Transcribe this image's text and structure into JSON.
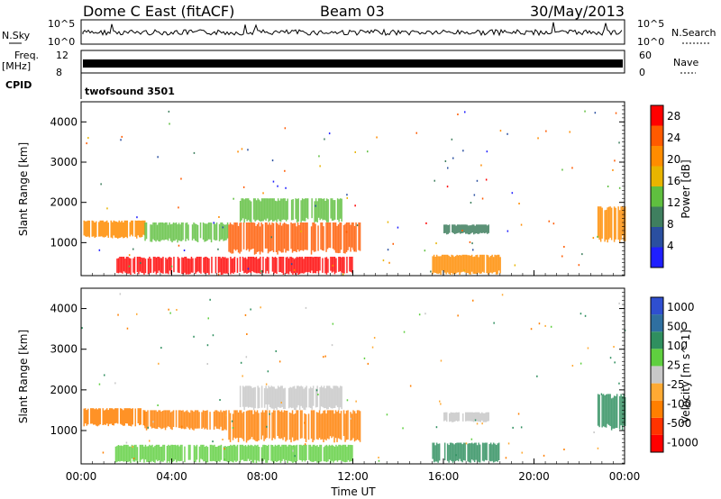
{
  "header": {
    "title": "Dome C East (fitACF)",
    "beam": "Beam 03",
    "date": "30/May/2013"
  },
  "status_panels": {
    "nsky_label": "N.Sky",
    "nsky_ticks": [
      "10^5",
      "10^0"
    ],
    "nsearch_label": "N.Search",
    "nsearch_ticks": [
      "10^5",
      "10^0"
    ],
    "freq_label": "Freq.",
    "freq_unit": "[MHz]",
    "freq_ticks": [
      "12",
      "8"
    ],
    "nave_label": "Nave",
    "nave_ticks": [
      "60",
      "0"
    ],
    "cpid_label": "CPID",
    "cpid_value": "twofsound 3501"
  },
  "colors": {
    "power_scale": [
      "#1f1fff",
      "#2a4fa0",
      "#3f7f5f",
      "#5fbf3f",
      "#e8b400",
      "#ff8c00",
      "#ff5a00",
      "#ff0000"
    ],
    "velocity_scale": [
      "#2f4fd0",
      "#2f6fa0",
      "#2f8f5f",
      "#5fcf3f",
      "#c8c8c8",
      "#ffaa33",
      "#ff7f00",
      "#ff3300",
      "#ff0000"
    ],
    "ground_scatter": "#b0b0b0"
  },
  "chart_data": [
    {
      "type": "heatmap",
      "title": "",
      "xlabel": "Time UT",
      "ylabel": "Slant Range [km]",
      "xlim": [
        0,
        24
      ],
      "ylim": [
        180,
        4500
      ],
      "x_ticks": [
        "00:00",
        "04:00",
        "08:00",
        "12:00",
        "16:00",
        "20:00",
        "00:00"
      ],
      "y_ticks": [
        1000,
        2000,
        3000,
        4000
      ],
      "colorbar": {
        "label": "Power [dB]",
        "ticks": [
          4,
          8,
          12,
          16,
          20,
          24,
          28
        ],
        "range": [
          0,
          30
        ]
      },
      "regions": [
        {
          "t": [
            0.1,
            2.8
          ],
          "r": [
            1100,
            1550
          ],
          "value": 22
        },
        {
          "t": [
            2.8,
            6.5
          ],
          "r": [
            1000,
            1500
          ],
          "value": 14
        },
        {
          "t": [
            6.5,
            12.3
          ],
          "r": [
            700,
            1500
          ],
          "value": 26
        },
        {
          "t": [
            7.0,
            11.5
          ],
          "r": [
            1500,
            2100
          ],
          "value": 14
        },
        {
          "t": [
            1.5,
            12.0
          ],
          "r": [
            200,
            650
          ],
          "value": 28
        },
        {
          "t": [
            15.5,
            18.5
          ],
          "r": [
            200,
            700
          ],
          "value": 22
        },
        {
          "t": [
            16.0,
            18.0
          ],
          "r": [
            1200,
            1450
          ],
          "value": 8
        },
        {
          "t": [
            22.8,
            24.0
          ],
          "r": [
            1000,
            1900
          ],
          "value": 20
        }
      ]
    },
    {
      "type": "heatmap",
      "title": "",
      "xlabel": "Time UT",
      "ylabel": "Slant Range [km]",
      "xlim": [
        0,
        24
      ],
      "ylim": [
        180,
        4500
      ],
      "x_ticks": [
        "00:00",
        "04:00",
        "08:00",
        "12:00",
        "16:00",
        "20:00",
        "00:00"
      ],
      "y_ticks": [
        1000,
        2000,
        3000,
        4000
      ],
      "colorbar": {
        "label": "Velocity [m s^-1]",
        "ticks": [
          1000,
          500,
          100,
          25,
          -25,
          -100,
          -500,
          -1000
        ]
      },
      "regions": [
        {
          "t": [
            0.1,
            2.8
          ],
          "r": [
            1100,
            1550
          ],
          "value": -200
        },
        {
          "t": [
            2.8,
            6.5
          ],
          "r": [
            1000,
            1500
          ],
          "value": -150
        },
        {
          "t": [
            6.5,
            12.3
          ],
          "r": [
            700,
            1500
          ],
          "value": -300
        },
        {
          "t": [
            7.0,
            11.5
          ],
          "r": [
            1500,
            2100
          ],
          "value": 0
        },
        {
          "t": [
            1.5,
            12.0
          ],
          "r": [
            200,
            650
          ],
          "value": 50
        },
        {
          "t": [
            15.5,
            18.5
          ],
          "r": [
            200,
            700
          ],
          "value": 150
        },
        {
          "t": [
            16.0,
            18.0
          ],
          "r": [
            1200,
            1450
          ],
          "value": 0
        },
        {
          "t": [
            22.8,
            24.0
          ],
          "r": [
            1000,
            1900
          ],
          "value": 150
        }
      ]
    }
  ]
}
